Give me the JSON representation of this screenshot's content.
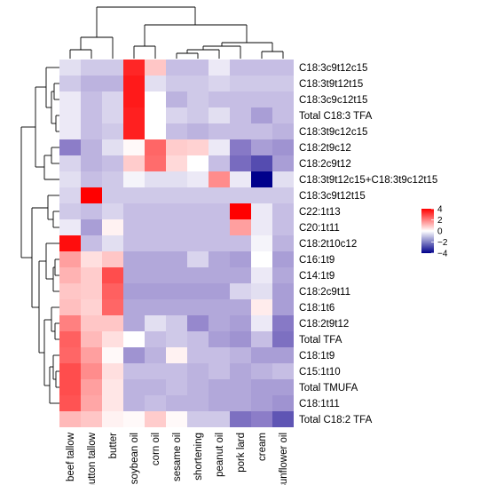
{
  "chart_data": {
    "type": "heatmap",
    "title": "",
    "xlabel": "",
    "ylabel": "",
    "columns": [
      "beef tallow",
      "mutton tallow",
      "butter",
      "soybean oil",
      "corn oil",
      "sesame oil",
      "shortening",
      "peanut oil",
      "pork lard",
      "cream",
      "sunflower oil"
    ],
    "rows": [
      "C18:3c9t12c15",
      "C18:3t9t12t15",
      "C18:3c9c12t15",
      "Total C18:3 TFA",
      "C18:3t9c12c15",
      "C18:2t9c12",
      "C18:2c9t12",
      "C18:3t9t12c15+C18:3t9c12t15",
      "C18:3c9t12t15",
      "C22:1t13",
      "C20:1t11",
      "C18:2t10c12",
      "C16:1t9",
      "C14:1t9",
      "C18:2c9t11",
      "C18:1t6",
      "C18:2t9t12",
      "Total TFA",
      "C18:1t9",
      "C15:1t10",
      "Total TMUFA",
      "C18:1t11",
      "Total C18:2 TFA"
    ],
    "values": [
      [
        -0.3,
        -0.5,
        -0.5,
        3.4,
        0.9,
        -0.6,
        -0.6,
        -0.2,
        -0.6,
        -0.6,
        -0.6
      ],
      [
        -0.5,
        -0.7,
        -0.7,
        3.6,
        -0.3,
        -0.5,
        -0.5,
        -0.4,
        -0.5,
        -0.5,
        -0.5
      ],
      [
        -0.2,
        -0.6,
        -0.4,
        3.6,
        0.0,
        -0.7,
        -0.5,
        -0.6,
        -0.6,
        -0.6,
        -0.6
      ],
      [
        -0.2,
        -0.6,
        -0.4,
        3.5,
        0.0,
        -0.4,
        -0.5,
        -0.3,
        -0.6,
        -0.9,
        -0.6
      ],
      [
        -0.2,
        -0.6,
        -0.5,
        3.5,
        0.0,
        -0.6,
        -0.7,
        -0.6,
        -0.6,
        -0.6,
        -0.7
      ],
      [
        -1.2,
        -0.7,
        -0.3,
        0.1,
        2.4,
        0.8,
        0.7,
        -0.2,
        -1.3,
        -0.9,
        -1.0
      ],
      [
        -0.4,
        -0.7,
        -0.6,
        0.8,
        2.3,
        0.6,
        0.0,
        -0.6,
        -1.6,
        -2.3,
        -0.9
      ],
      [
        -0.3,
        -0.6,
        -0.5,
        -0.1,
        -0.3,
        -0.3,
        -0.2,
        1.8,
        -0.2,
        -4.0,
        -0.3
      ],
      [
        -0.4,
        4.0,
        -0.5,
        -0.5,
        -0.5,
        -0.5,
        -0.5,
        -0.5,
        -0.5,
        -0.5,
        -0.5
      ],
      [
        -0.5,
        -0.6,
        -0.4,
        -0.6,
        -0.6,
        -0.6,
        -0.6,
        -0.6,
        4.0,
        -0.2,
        -0.6
      ],
      [
        -0.2,
        -0.9,
        0.2,
        -0.6,
        -0.6,
        -0.6,
        -0.6,
        -0.6,
        1.5,
        -0.2,
        -0.6
      ],
      [
        3.8,
        -0.6,
        -0.3,
        -0.6,
        -0.6,
        -0.6,
        -0.6,
        -0.6,
        -0.6,
        -0.1,
        -0.7
      ],
      [
        1.5,
        0.5,
        0.9,
        -0.8,
        -0.8,
        -0.8,
        -0.4,
        -0.8,
        -0.9,
        0.0,
        -0.9
      ],
      [
        1.2,
        0.8,
        2.8,
        -0.8,
        -0.8,
        -0.8,
        -0.8,
        -0.8,
        -0.8,
        -0.2,
        -0.8
      ],
      [
        0.9,
        0.8,
        2.5,
        -0.9,
        -0.9,
        -0.9,
        -0.9,
        -0.9,
        -0.4,
        -0.3,
        -0.9
      ],
      [
        1.0,
        0.7,
        2.4,
        -0.8,
        -0.8,
        -0.8,
        -0.8,
        -0.8,
        -0.8,
        0.3,
        -0.9
      ],
      [
        2.0,
        0.9,
        0.9,
        -0.8,
        -0.3,
        -0.5,
        -1.1,
        -0.8,
        -0.9,
        -0.2,
        -1.3
      ],
      [
        2.5,
        1.1,
        0.5,
        0.0,
        -0.6,
        -0.5,
        -0.6,
        -0.9,
        -1.0,
        -0.6,
        -1.5
      ],
      [
        2.4,
        1.5,
        0.1,
        -1.0,
        -0.7,
        0.2,
        -0.6,
        -0.6,
        -0.7,
        -0.9,
        -0.9
      ],
      [
        2.8,
        1.8,
        0.5,
        -0.6,
        -0.6,
        -0.6,
        -0.7,
        -0.6,
        -0.8,
        -0.7,
        -0.6
      ],
      [
        2.8,
        1.5,
        0.4,
        -0.7,
        -0.7,
        -0.6,
        -0.7,
        -0.8,
        -0.8,
        -0.9,
        -0.9
      ],
      [
        2.7,
        1.4,
        0.4,
        -0.7,
        -0.6,
        -0.7,
        -0.7,
        -0.8,
        -0.8,
        -0.9,
        -1.0
      ],
      [
        1.1,
        0.9,
        0.2,
        0.1,
        0.8,
        0.1,
        -0.5,
        -0.5,
        -1.5,
        -1.2,
        -2.1
      ]
    ],
    "color_scale": {
      "min": -4,
      "max": 4,
      "low": "#00008B",
      "mid": "#FFFFFF",
      "high": "#FF0000"
    },
    "legend": {
      "ticks": [
        "4",
        "2",
        "0",
        "−2",
        "−4"
      ],
      "tick_values": [
        4,
        2,
        0,
        -2,
        -4
      ],
      "placement": "right"
    },
    "dendrogram_rows": true,
    "dendrogram_columns": true,
    "grid": false
  }
}
